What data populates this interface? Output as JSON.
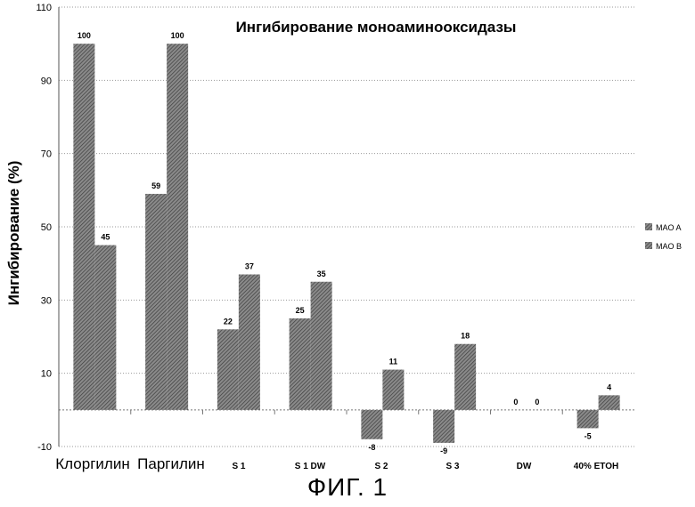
{
  "chart_data": {
    "type": "bar",
    "title": "Ингибирование моноаминооксидазы",
    "xlabel": "",
    "ylabel": "Ингибирование (%)",
    "ylim": [
      -10,
      110
    ],
    "yticks": [
      -10,
      10,
      30,
      50,
      70,
      90,
      110
    ],
    "grid": true,
    "legend_position": "right",
    "categories": [
      "Клоргилин",
      "Паргилин",
      "S 1",
      "S 1 DW",
      "S 2",
      "S 3",
      "DW",
      "40% ETOH"
    ],
    "series": [
      {
        "name": "MAO A",
        "values": [
          100,
          59,
          22,
          25,
          -8,
          -9,
          0,
          -5
        ]
      },
      {
        "name": "MAO B",
        "values": [
          45,
          100,
          37,
          35,
          11,
          18,
          0,
          4
        ]
      }
    ]
  },
  "figure_caption": "ФИГ. 1"
}
